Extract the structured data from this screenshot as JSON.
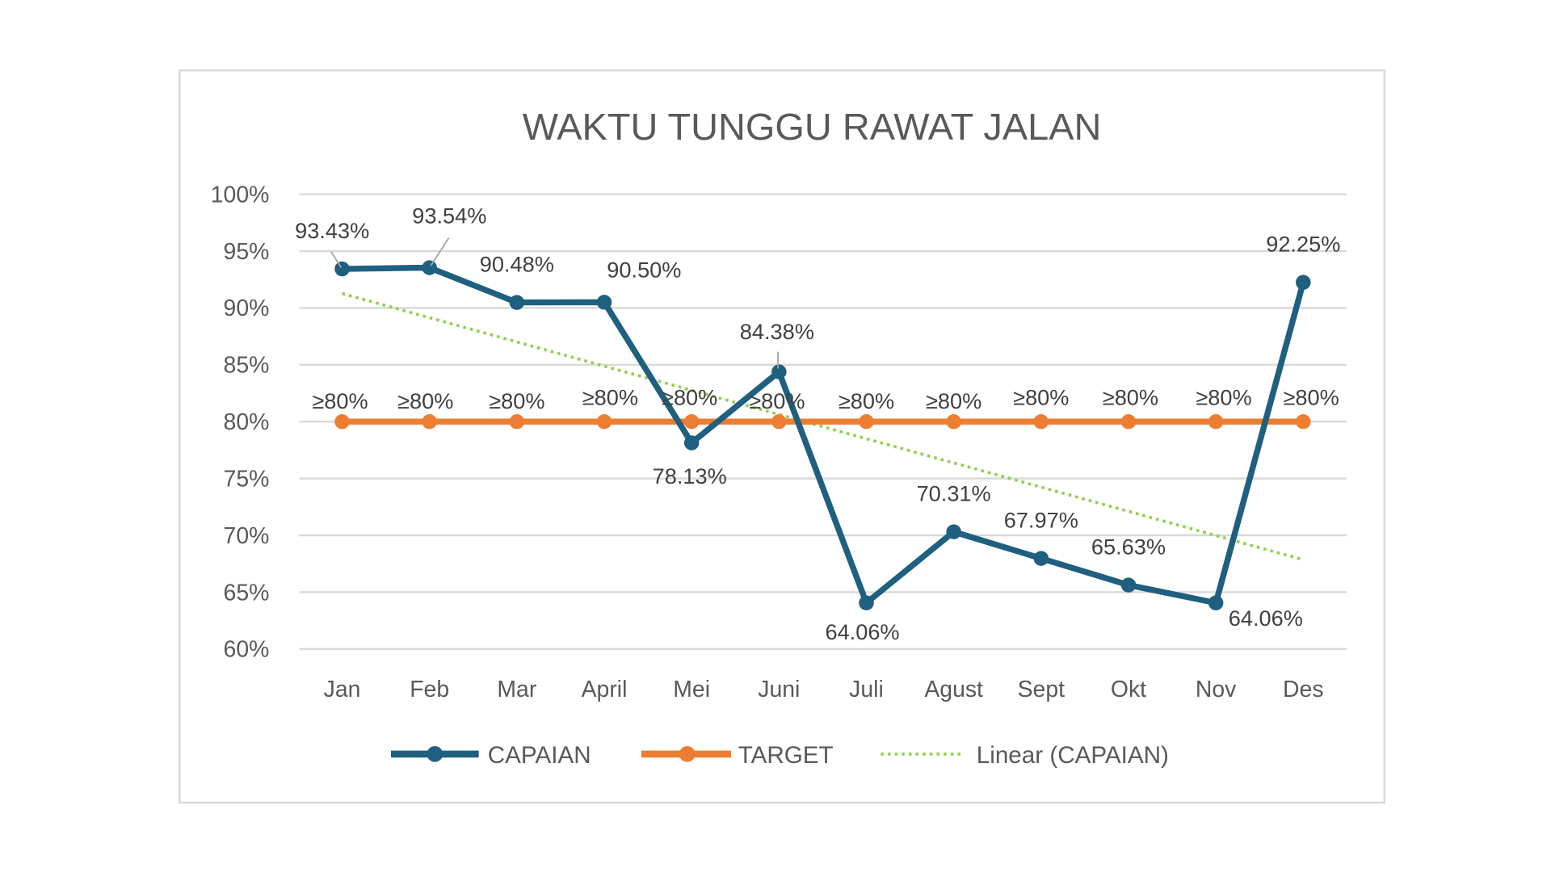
{
  "chart_data": {
    "type": "line",
    "title": "WAKTU TUNGGU RAWAT JALAN",
    "categories": [
      "Jan",
      "Feb",
      "Mar",
      "April",
      "Mei",
      "Juni",
      "Juli",
      "Agust",
      "Sept",
      "Okt",
      "Nov",
      "Des"
    ],
    "ylim": [
      60,
      100
    ],
    "yticks": [
      "100%",
      "95%",
      "90%",
      "85%",
      "80%",
      "75%",
      "70%",
      "65%",
      "60%"
    ],
    "grid": true,
    "legend_position": "bottom",
    "series": [
      {
        "name": "CAPAIAN",
        "color": "#1f5f7f",
        "values": [
          93.43,
          93.54,
          90.48,
          90.5,
          78.13,
          84.38,
          64.06,
          70.31,
          67.97,
          65.63,
          64.06,
          92.25
        ],
        "labels": [
          "93.43%",
          "93.54%",
          "90.48%",
          "90.50%",
          "78.13%",
          "84.38%",
          "64.06%",
          "70.31%",
          "67.97%",
          "65.63%",
          "64.06%",
          "92.25%"
        ]
      },
      {
        "name": "TARGET",
        "color": "#ed7d31",
        "values": [
          80,
          80,
          80,
          80,
          80,
          80,
          80,
          80,
          80,
          80,
          80,
          80
        ],
        "labels": [
          "≥80%",
          "≥80%",
          "≥80%",
          "≥80%",
          "≥80%",
          "≥80%",
          "≥80%",
          "≥80%",
          "≥80%",
          "≥80%",
          "≥80%",
          "≥80%"
        ]
      }
    ],
    "trendline": {
      "name": "Linear (CAPAIAN)",
      "type": "linear",
      "of": "CAPAIAN",
      "color": "#92d050",
      "style": "dotted"
    }
  }
}
